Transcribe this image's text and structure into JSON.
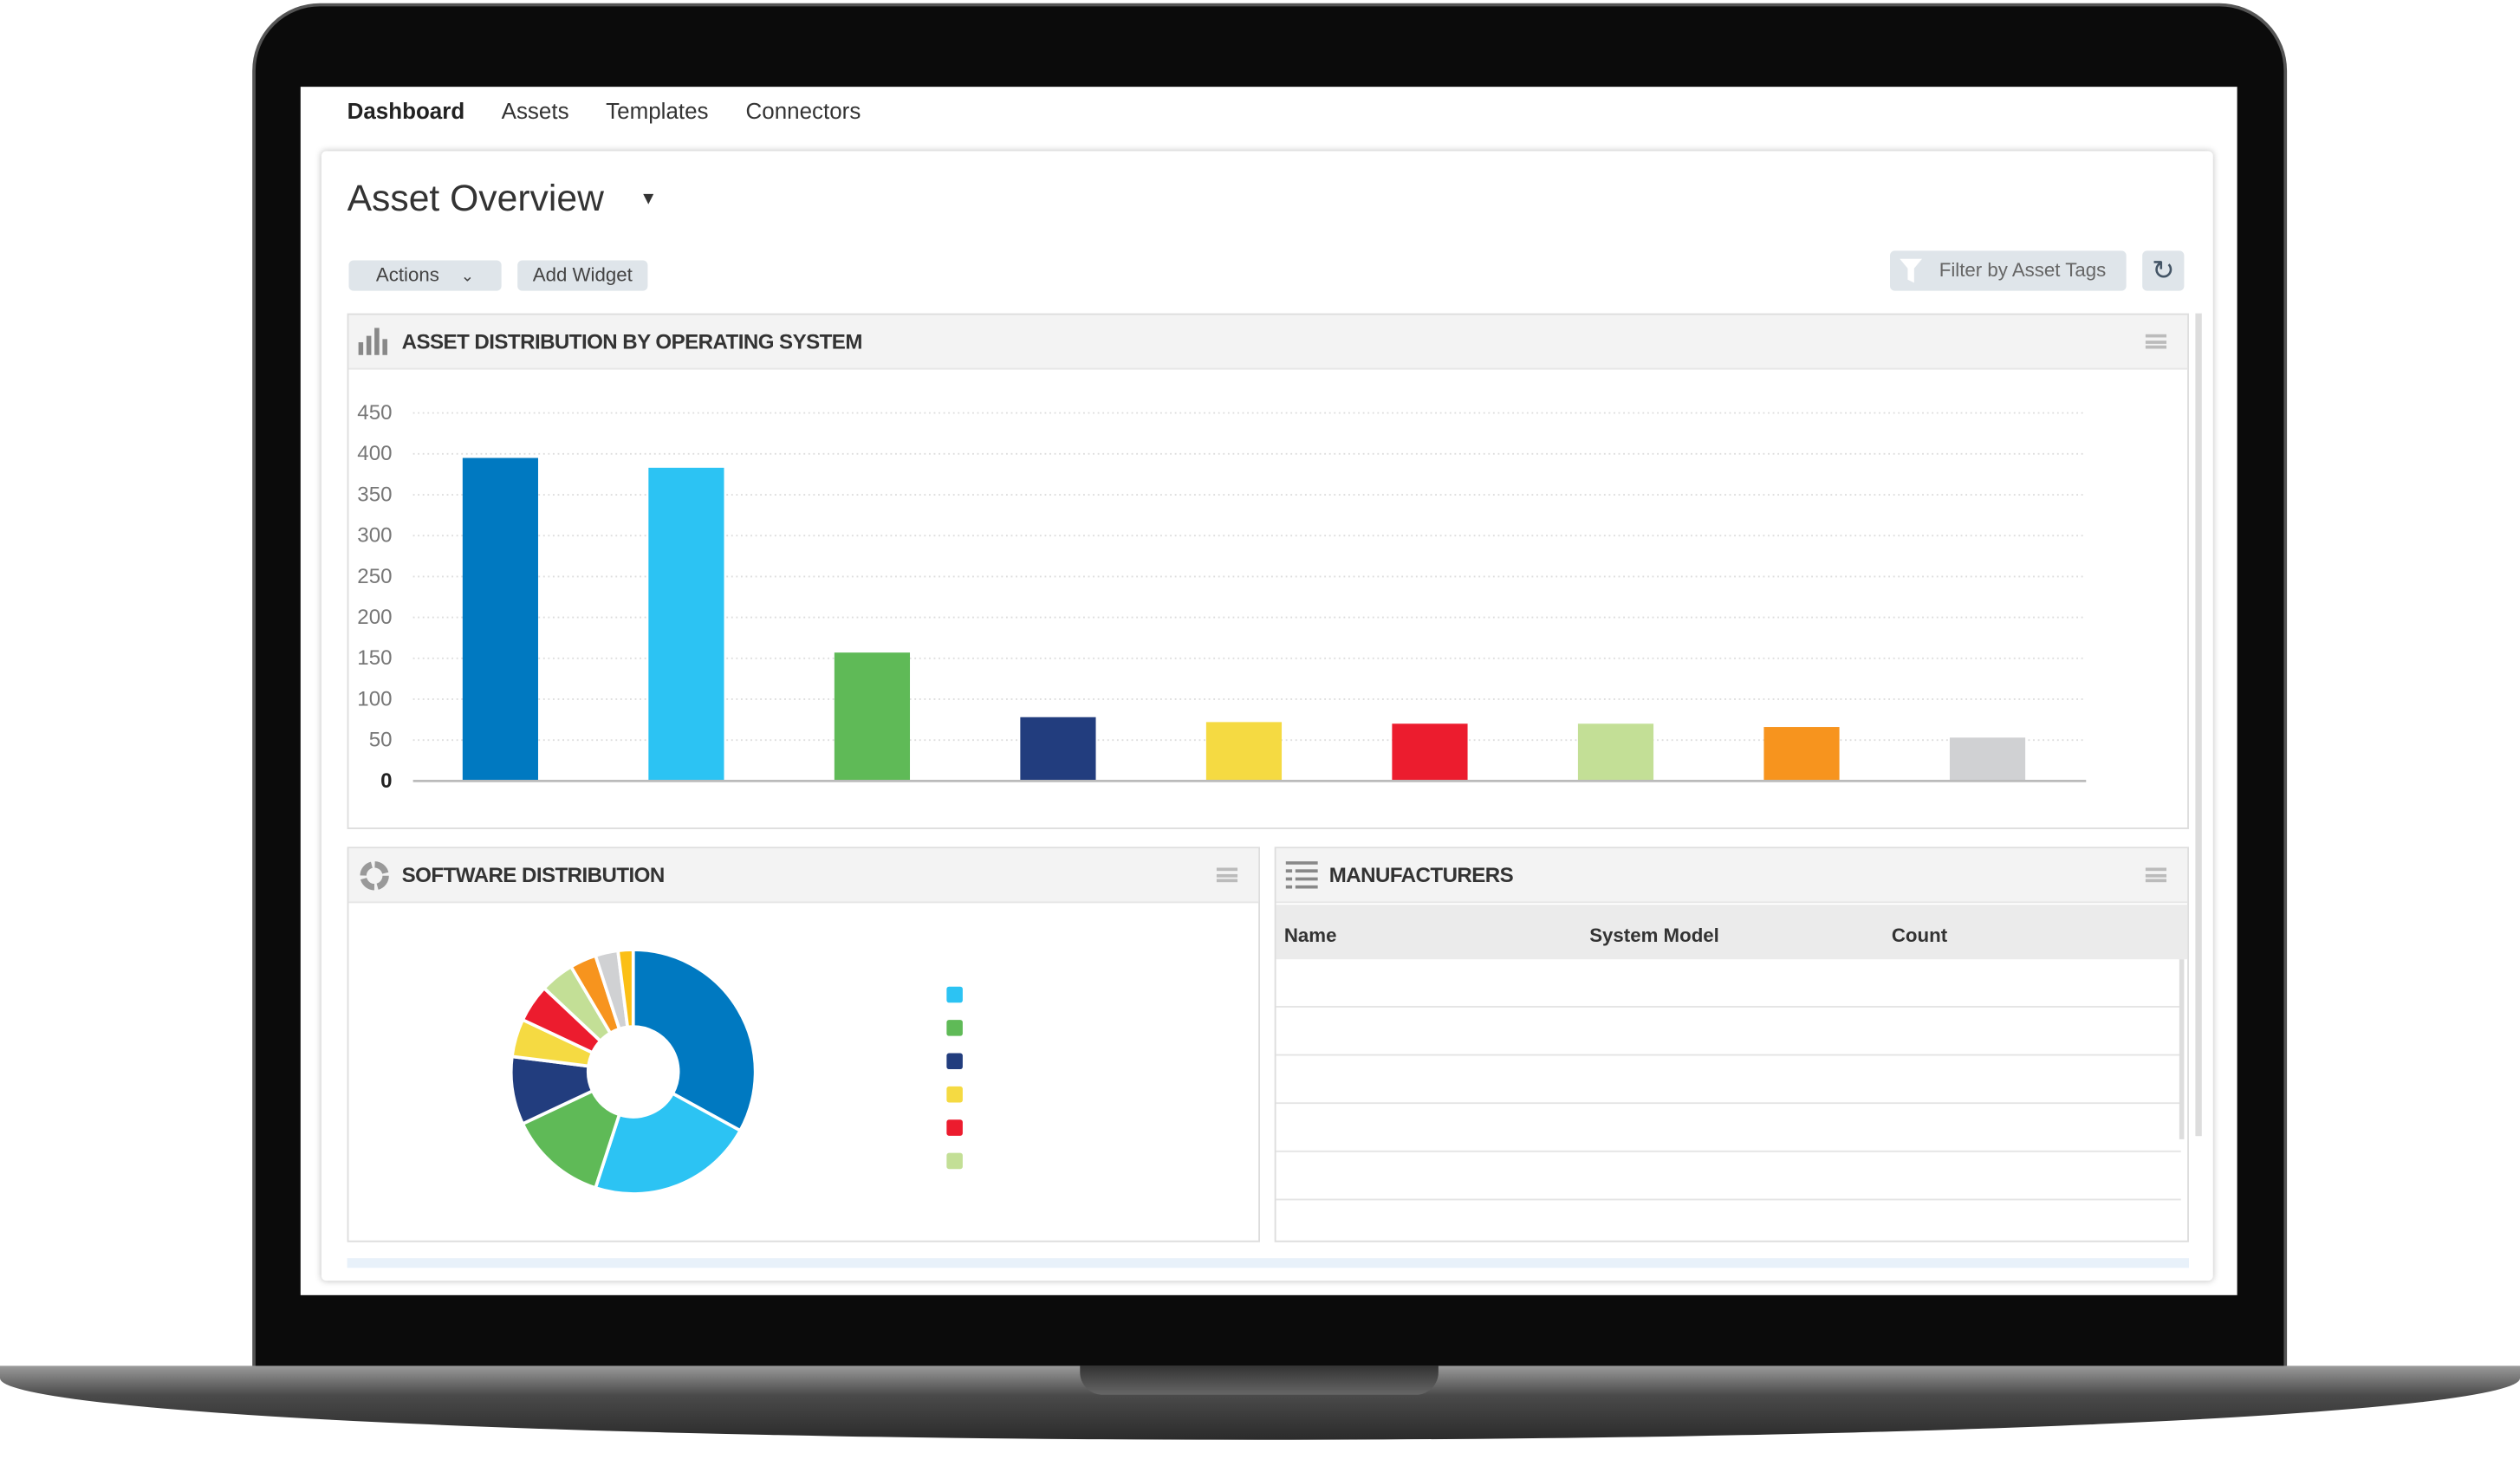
{
  "nav": {
    "items": [
      "Dashboard",
      "Assets",
      "Templates",
      "Connectors"
    ],
    "active": "Dashboard"
  },
  "page": {
    "title": "Asset Overview"
  },
  "toolbar": {
    "actions_label": "Actions",
    "add_widget_label": "Add Widget",
    "filter_label": "Filter by Asset Tags",
    "refresh_icon": "refresh-icon",
    "filter_icon": "funnel-icon"
  },
  "widgets": {
    "os": {
      "title": "ASSET DISTRIBUTION BY OPERATING SYSTEM",
      "icon": "bar-chart-icon"
    },
    "software": {
      "title": "SOFTWARE DISTRIBUTION",
      "icon": "donut-chart-icon"
    },
    "manufacturers": {
      "title": "MANUFACTURERS",
      "icon": "list-icon",
      "columns": [
        "Name",
        "System Model",
        "Count"
      ],
      "rows": []
    }
  },
  "chart_data": [
    {
      "type": "bar",
      "title": "",
      "xlabel": "",
      "ylabel": "",
      "ylim": [
        0,
        450
      ],
      "yticks": [
        "0",
        "50",
        "100",
        "150",
        "200",
        "250",
        "300",
        "350",
        "400",
        "450"
      ],
      "grid": true,
      "values": [
        395,
        383,
        157,
        78,
        72,
        70,
        70,
        66,
        53
      ],
      "colors": [
        "#0079c1",
        "#2cc3f3",
        "#5fba57",
        "#223d7e",
        "#f5da42",
        "#ec1c2e",
        "#c3df96",
        "#f7941e",
        "#d0d1d3"
      ]
    },
    {
      "type": "pie",
      "subtype": "donut",
      "values": [
        33,
        22,
        13,
        9,
        5,
        5,
        4.5,
        3.5,
        3,
        2
      ],
      "colors": [
        "#0079c1",
        "#2cc3f3",
        "#5fba57",
        "#223d7e",
        "#f5da42",
        "#ec1c2e",
        "#c3df96",
        "#f7941e",
        "#d0d1d3",
        "#fbbf15"
      ],
      "legend_colors": [
        "#2cc3f3",
        "#5fba57",
        "#223d7e",
        "#f5da42",
        "#ec1c2e",
        "#c3df96"
      ],
      "legend_placement": "right"
    }
  ]
}
